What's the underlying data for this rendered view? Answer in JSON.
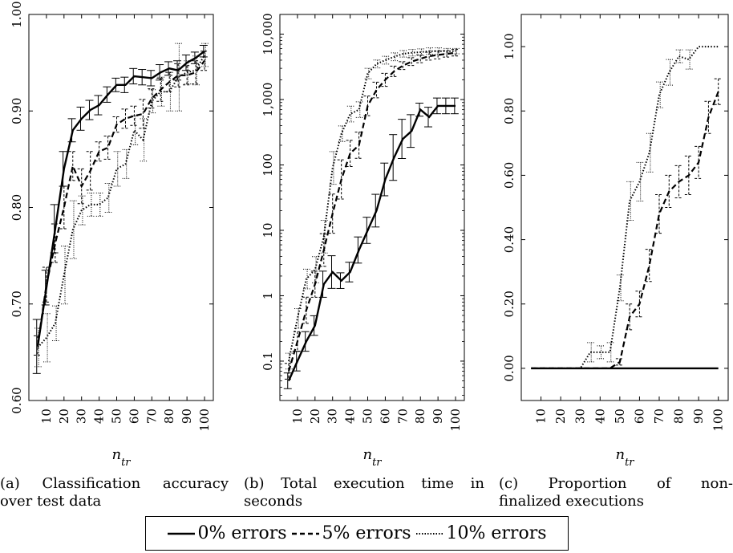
{
  "x_ticks": [
    "10",
    "20",
    "30",
    "40",
    "50",
    "60",
    "70",
    "80",
    "90",
    "100"
  ],
  "x_label": {
    "base": "n",
    "sub": "tr"
  },
  "captions": [
    {
      "id": "a",
      "line1": "(a)  Classification  accuracy",
      "line2": "over test data"
    },
    {
      "id": "b",
      "line1": "(b)  Total execution time in",
      "line2": "seconds"
    },
    {
      "id": "c",
      "line1": "(c)   Proportion   of   non-",
      "line2": "finalized executions"
    }
  ],
  "legend": [
    {
      "label": "0% errors",
      "style": "solid"
    },
    {
      "label": "5% errors",
      "style": "dashed"
    },
    {
      "label": "10% errors",
      "style": "dotted"
    }
  ],
  "chart_data": [
    {
      "type": "line",
      "caption": "(a) Classification accuracy over test data",
      "x": [
        5,
        10,
        15,
        20,
        25,
        30,
        35,
        40,
        45,
        50,
        55,
        60,
        65,
        70,
        75,
        80,
        85,
        90,
        95,
        100
      ],
      "xlabel": "n_tr",
      "ylim": [
        0.6,
        1.0
      ],
      "yticks": [
        "0.60",
        "0.70",
        "0.80",
        "0.90",
        "1.00"
      ],
      "series": [
        {
          "name": "0% errors",
          "style": "solid",
          "values": [
            0.656,
            0.717,
            0.778,
            0.84,
            0.88,
            0.892,
            0.901,
            0.906,
            0.917,
            0.927,
            0.927,
            0.936,
            0.935,
            0.934,
            0.94,
            0.944,
            0.942,
            0.95,
            0.955,
            0.962
          ],
          "error": [
            0.028,
            0.018,
            0.025,
            0.018,
            0.012,
            0.012,
            0.01,
            0.01,
            0.008,
            0.007,
            0.008,
            0.008,
            0.008,
            0.008,
            0.008,
            0.007,
            0.01,
            0.008,
            0.006,
            0.006
          ]
        },
        {
          "name": "5% errors",
          "style": "dashed",
          "values": [
            0.657,
            0.72,
            0.763,
            0.8,
            0.843,
            0.822,
            0.838,
            0.858,
            0.862,
            0.886,
            0.892,
            0.895,
            0.897,
            0.913,
            0.922,
            0.93,
            0.937,
            0.937,
            0.94,
            0.952
          ],
          "error": [
            0.01,
            0.018,
            0.02,
            0.022,
            0.015,
            0.018,
            0.02,
            0.01,
            0.012,
            0.008,
            0.01,
            0.01,
            0.015,
            0.01,
            0.012,
            0.01,
            0.012,
            0.01,
            0.012,
            0.01
          ]
        },
        {
          "name": "10% errors",
          "style": "dotted",
          "values": [
            0.655,
            0.665,
            0.68,
            0.73,
            0.777,
            0.797,
            0.803,
            0.803,
            0.81,
            0.84,
            0.845,
            0.88,
            0.87,
            0.91,
            0.92,
            0.92,
            0.935,
            0.94,
            0.942,
            0.958
          ],
          "error": [
            0.02,
            0.025,
            0.018,
            0.03,
            0.03,
            0.015,
            0.012,
            0.012,
            0.015,
            0.018,
            0.015,
            0.015,
            0.022,
            0.012,
            0.015,
            0.02,
            0.035,
            0.012,
            0.015,
            0.012
          ]
        }
      ]
    },
    {
      "type": "line",
      "caption": "(b) Total execution time in seconds",
      "x": [
        5,
        10,
        15,
        20,
        25,
        30,
        35,
        40,
        45,
        50,
        55,
        60,
        65,
        70,
        75,
        80,
        85,
        90,
        95,
        100
      ],
      "xlabel": "n_tr",
      "yscale": "log",
      "ylim": [
        0.025,
        20000
      ],
      "yticks": [
        "0.1",
        "1",
        "10",
        "100",
        "1,000",
        "10,000"
      ],
      "yticks_values": [
        0.1,
        1,
        10,
        100,
        1000,
        10000
      ],
      "series": [
        {
          "name": "0% errors",
          "style": "solid",
          "values": [
            0.05,
            0.1,
            0.2,
            0.35,
            1.5,
            2.3,
            1.7,
            2.3,
            5,
            10,
            20,
            60,
            130,
            250,
            330,
            700,
            540,
            800,
            800,
            800
          ],
          "error_log10": [
            0.12,
            0.15,
            0.15,
            0.15,
            0.2,
            0.25,
            0.12,
            0.15,
            0.2,
            0.2,
            0.25,
            0.25,
            0.35,
            0.3,
            0.25,
            0.1,
            0.15,
            0.12,
            0.12,
            0.12
          ]
        },
        {
          "name": "5% errors",
          "style": "dashed",
          "values": [
            0.07,
            0.2,
            0.6,
            1.5,
            5,
            18,
            60,
            150,
            200,
            800,
            1400,
            2000,
            2700,
            3300,
            3800,
            4200,
            4600,
            4800,
            5000,
            5200
          ],
          "error_log10": [
            0.12,
            0.15,
            0.2,
            0.2,
            0.25,
            0.3,
            0.3,
            0.2,
            0.2,
            0.15,
            0.12,
            0.1,
            0.08,
            0.06,
            0.06,
            0.06,
            0.06,
            0.06,
            0.05,
            0.05
          ]
        },
        {
          "name": "10% errors",
          "style": "dotted",
          "values": [
            0.1,
            0.45,
            1.8,
            2.5,
            8,
            90,
            300,
            600,
            700,
            2500,
            3500,
            4000,
            4500,
            5000,
            5200,
            5300,
            5500,
            5500,
            5500,
            5500
          ],
          "error_log10": [
            0.12,
            0.15,
            0.15,
            0.2,
            0.25,
            0.25,
            0.12,
            0.12,
            0.12,
            0.08,
            0.06,
            0.06,
            0.06,
            0.05,
            0.05,
            0.05,
            0.05,
            0.05,
            0.04,
            0.04
          ]
        }
      ]
    },
    {
      "type": "line",
      "caption": "(c) Proportion of non-finalized executions",
      "x": [
        5,
        10,
        15,
        20,
        25,
        30,
        35,
        40,
        45,
        50,
        55,
        60,
        65,
        70,
        75,
        80,
        85,
        90,
        95,
        100
      ],
      "xlabel": "n_tr",
      "ylim": [
        -0.1,
        1.1
      ],
      "yticks": [
        "0.00",
        "0.20",
        "0.40",
        "0.60",
        "0.80",
        "1.00"
      ],
      "series": [
        {
          "name": "0% errors",
          "style": "solid",
          "values": [
            0,
            0,
            0,
            0,
            0,
            0,
            0,
            0,
            0,
            0,
            0,
            0,
            0,
            0,
            0,
            0,
            0,
            0,
            0,
            0
          ],
          "error": [
            0,
            0,
            0,
            0,
            0,
            0,
            0,
            0,
            0,
            0,
            0,
            0,
            0,
            0,
            0,
            0,
            0,
            0,
            0,
            0
          ]
        },
        {
          "name": "5% errors",
          "style": "dashed",
          "values": [
            0,
            0,
            0,
            0,
            0,
            0,
            0,
            0,
            0,
            0.02,
            0.16,
            0.2,
            0.32,
            0.48,
            0.55,
            0.58,
            0.6,
            0.64,
            0.78,
            0.86
          ],
          "error": [
            0,
            0,
            0,
            0,
            0,
            0,
            0,
            0,
            0,
            0.01,
            0.04,
            0.04,
            0.05,
            0.06,
            0.05,
            0.05,
            0.06,
            0.05,
            0.05,
            0.04
          ]
        },
        {
          "name": "10% errors",
          "style": "dotted",
          "values": [
            0,
            0,
            0,
            0,
            0,
            0,
            0.05,
            0.05,
            0.05,
            0.25,
            0.52,
            0.58,
            0.67,
            0.85,
            0.92,
            0.97,
            0.96,
            1.0,
            1.0,
            1.0
          ],
          "error": [
            0,
            0,
            0,
            0,
            0,
            0,
            0.03,
            0.02,
            0.03,
            0.04,
            0.06,
            0.06,
            0.06,
            0.04,
            0.04,
            0.02,
            0.03,
            0,
            0,
            0
          ]
        }
      ]
    }
  ]
}
